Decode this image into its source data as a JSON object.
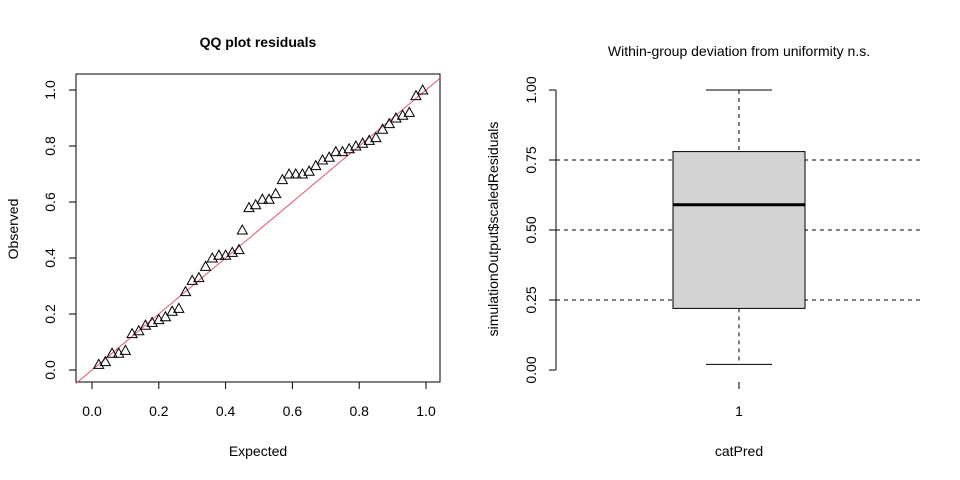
{
  "chart_data": [
    {
      "type": "scatter",
      "title": "QQ plot residuals",
      "xlabel": "Expected",
      "ylabel": "Observed",
      "xlim": [
        0,
        1
      ],
      "ylim": [
        0,
        1
      ],
      "xticks": [
        "0.0",
        "0.2",
        "0.4",
        "0.6",
        "0.8",
        "1.0"
      ],
      "yticks": [
        "0.0",
        "0.2",
        "0.4",
        "0.6",
        "0.8",
        "1.0"
      ],
      "marker": "triangle",
      "reference_line": {
        "type": "identity",
        "color": "#e8546c"
      },
      "points": [
        [
          0.02,
          0.02
        ],
        [
          0.04,
          0.03
        ],
        [
          0.06,
          0.06
        ],
        [
          0.08,
          0.06
        ],
        [
          0.1,
          0.07
        ],
        [
          0.12,
          0.13
        ],
        [
          0.14,
          0.14
        ],
        [
          0.16,
          0.16
        ],
        [
          0.18,
          0.17
        ],
        [
          0.2,
          0.18
        ],
        [
          0.22,
          0.19
        ],
        [
          0.24,
          0.21
        ],
        [
          0.26,
          0.22
        ],
        [
          0.28,
          0.28
        ],
        [
          0.3,
          0.32
        ],
        [
          0.32,
          0.33
        ],
        [
          0.34,
          0.37
        ],
        [
          0.36,
          0.4
        ],
        [
          0.38,
          0.41
        ],
        [
          0.4,
          0.41
        ],
        [
          0.42,
          0.42
        ],
        [
          0.44,
          0.43
        ],
        [
          0.45,
          0.5
        ],
        [
          0.47,
          0.58
        ],
        [
          0.49,
          0.59
        ],
        [
          0.51,
          0.61
        ],
        [
          0.53,
          0.61
        ],
        [
          0.55,
          0.63
        ],
        [
          0.57,
          0.68
        ],
        [
          0.59,
          0.7
        ],
        [
          0.61,
          0.7
        ],
        [
          0.63,
          0.7
        ],
        [
          0.65,
          0.71
        ],
        [
          0.67,
          0.73
        ],
        [
          0.69,
          0.75
        ],
        [
          0.71,
          0.76
        ],
        [
          0.73,
          0.78
        ],
        [
          0.75,
          0.78
        ],
        [
          0.77,
          0.79
        ],
        [
          0.79,
          0.8
        ],
        [
          0.81,
          0.81
        ],
        [
          0.83,
          0.82
        ],
        [
          0.85,
          0.83
        ],
        [
          0.87,
          0.86
        ],
        [
          0.89,
          0.88
        ],
        [
          0.91,
          0.9
        ],
        [
          0.93,
          0.91
        ],
        [
          0.95,
          0.92
        ],
        [
          0.97,
          0.98
        ],
        [
          0.99,
          1.0
        ]
      ]
    },
    {
      "type": "box",
      "title": "Within-group deviation from uniformity n.s.",
      "xlabel": "catPred",
      "ylabel": "simulationOutput$scaledResiduals",
      "ylim": [
        0,
        1
      ],
      "yticks": [
        "0.00",
        "0.25",
        "0.50",
        "0.75",
        "1.00"
      ],
      "categories": [
        "1"
      ],
      "box": {
        "min": 0.02,
        "q1": 0.22,
        "median": 0.59,
        "q3": 0.78,
        "max": 1.0
      },
      "box_fill": "#d3d3d3",
      "reference_lines": [
        0.25,
        0.5,
        0.75
      ]
    }
  ]
}
